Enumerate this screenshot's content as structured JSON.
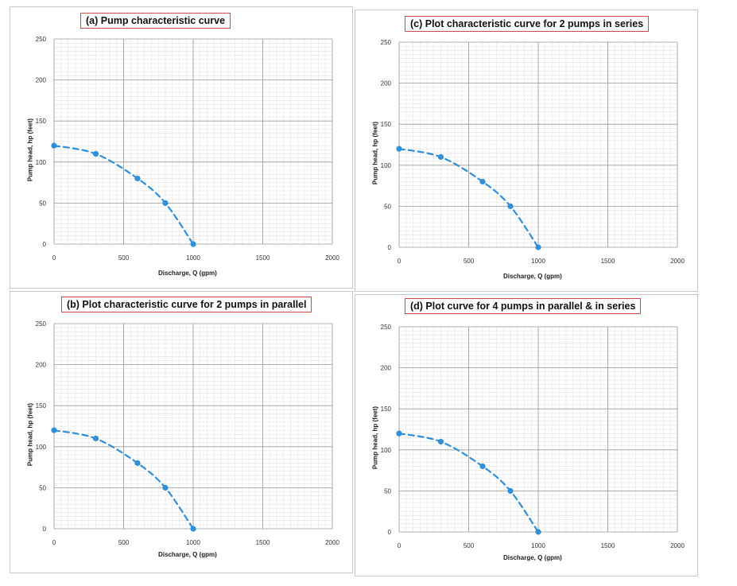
{
  "chart_data": [
    {
      "type": "line",
      "title": "(a) Pump characteristic curve",
      "xlabel": "Discharge, Q (gpm)",
      "ylabel": "Pump head, hp (feet)",
      "xlim": [
        0,
        2000
      ],
      "ylim": [
        0,
        250
      ],
      "xticks": [
        0,
        500,
        1000,
        1500,
        2000
      ],
      "yticks": [
        0,
        50,
        100,
        150,
        200,
        250
      ],
      "grid": true,
      "series": [
        {
          "x": [
            0,
            300,
            600,
            800,
            1000
          ],
          "values": [
            120,
            110,
            80,
            50,
            0
          ],
          "color": "#2f8fd8",
          "style": "dashed"
        }
      ]
    },
    {
      "type": "line",
      "title": "(c) Plot characteristic curve for 2 pumps in series",
      "xlabel": "Discharge, Q (gpm)",
      "ylabel": "Pump head, hp (feet)",
      "xlim": [
        0,
        2000
      ],
      "ylim": [
        0,
        250
      ],
      "xticks": [
        0,
        500,
        1000,
        1500,
        2000
      ],
      "yticks": [
        0,
        50,
        100,
        150,
        200,
        250
      ],
      "grid": true,
      "series": [
        {
          "x": [
            0,
            300,
            600,
            800,
            1000
          ],
          "values": [
            120,
            110,
            80,
            50,
            0
          ],
          "color": "#2f8fd8",
          "style": "dashed"
        }
      ]
    },
    {
      "type": "line",
      "title": "(b) Plot characteristic curve for 2 pumps in parallel",
      "xlabel": "Discharge, Q (gpm)",
      "ylabel": "Pump head, hp (feet)",
      "xlim": [
        0,
        2000
      ],
      "ylim": [
        0,
        250
      ],
      "xticks": [
        0,
        500,
        1000,
        1500,
        2000
      ],
      "yticks": [
        0,
        50,
        100,
        150,
        200,
        250
      ],
      "grid": true,
      "series": [
        {
          "x": [
            0,
            300,
            600,
            800,
            1000
          ],
          "values": [
            120,
            110,
            80,
            50,
            0
          ],
          "color": "#2f8fd8",
          "style": "dashed"
        }
      ]
    },
    {
      "type": "line",
      "title": "(d) Plot curve for 4 pumps in parallel & in series",
      "xlabel": "Discharge, Q (gpm)",
      "ylabel": "Pump head, hp (feet)",
      "xlim": [
        0,
        2000
      ],
      "ylim": [
        0,
        250
      ],
      "xticks": [
        0,
        500,
        1000,
        1500,
        2000
      ],
      "yticks": [
        0,
        50,
        100,
        150,
        200,
        250
      ],
      "grid": true,
      "series": [
        {
          "x": [
            0,
            300,
            600,
            800,
            1000
          ],
          "values": [
            120,
            110,
            80,
            50,
            0
          ],
          "color": "#2f8fd8",
          "style": "dashed"
        }
      ]
    }
  ]
}
